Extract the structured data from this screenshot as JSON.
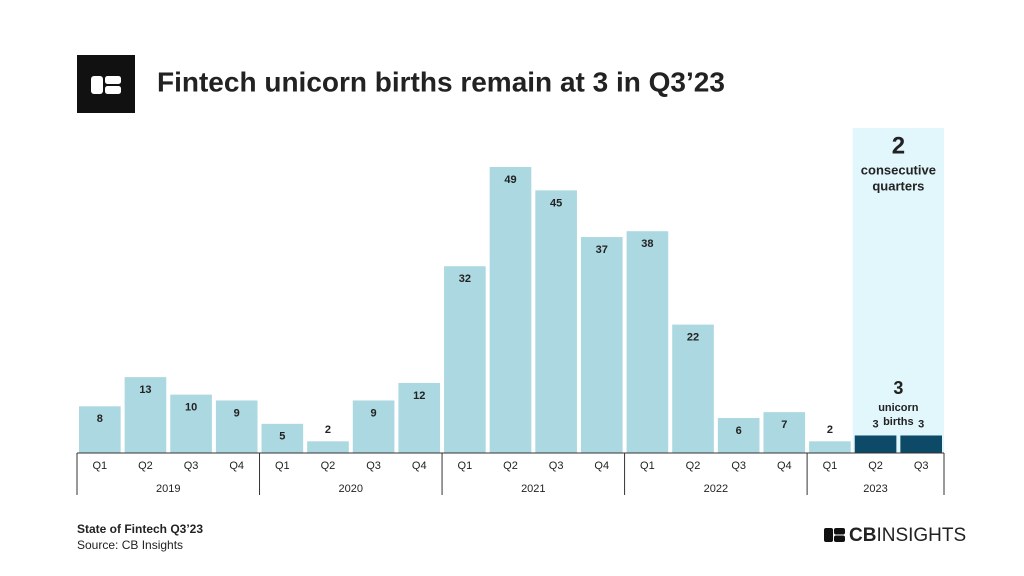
{
  "chart_data": {
    "type": "bar",
    "title": "Fintech unicorn births remain at 3 in Q3’23",
    "color": "#acd8e1",
    "highlight_color": "#0c4a68",
    "highlight_band_color": "#e1f7fc",
    "groups": [
      {
        "label": "2019",
        "categories": [
          "Q1",
          "Q2",
          "Q3",
          "Q4"
        ],
        "values": [
          8,
          13,
          10,
          9
        ],
        "colors": [
          "#acd8e1",
          "#acd8e1",
          "#acd8e1",
          "#acd8e1"
        ]
      },
      {
        "label": "2020",
        "categories": [
          "Q1",
          "Q2",
          "Q3",
          "Q4"
        ],
        "values": [
          5,
          2,
          9,
          12
        ],
        "colors": [
          "#acd8e1",
          "#acd8e1",
          "#acd8e1",
          "#acd8e1"
        ]
      },
      {
        "label": "2021",
        "categories": [
          "Q1",
          "Q2",
          "Q3",
          "Q4"
        ],
        "values": [
          32,
          49,
          45,
          37
        ],
        "colors": [
          "#acd8e1",
          "#acd8e1",
          "#acd8e1",
          "#acd8e1"
        ]
      },
      {
        "label": "2022",
        "categories": [
          "Q1",
          "Q2",
          "Q3",
          "Q4"
        ],
        "values": [
          38,
          22,
          6,
          7
        ],
        "colors": [
          "#acd8e1",
          "#acd8e1",
          "#acd8e1",
          "#acd8e1"
        ]
      },
      {
        "label": "2023",
        "categories": [
          "Q1",
          "Q2",
          "Q3"
        ],
        "values": [
          2,
          3,
          3
        ],
        "colors": [
          "#acd8e1",
          "#0c4a68",
          "#0c4a68"
        ]
      }
    ],
    "annotations": [
      {
        "number": 2,
        "label": [
          "consecutive",
          "quarters"
        ]
      },
      {
        "number": 3,
        "label": [
          "unicorn",
          "births"
        ]
      }
    ],
    "footer": {
      "report": "State of Fintech Q3’23",
      "source": "Source: CB Insights",
      "brand": [
        "CB",
        "INSIGHTS"
      ]
    }
  }
}
